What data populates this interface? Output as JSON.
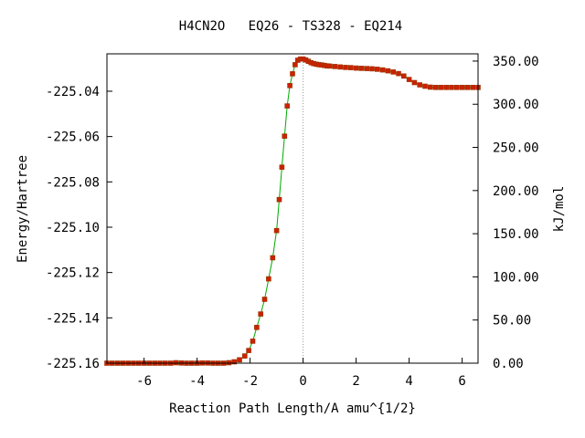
{
  "chart_data": {
    "type": "scatter",
    "title": "H4CN2O   EQ26 - TS328 - EQ214",
    "xlabel": "Reaction Path Length/A amu^{1/2}",
    "ylabel": "Energy/Hartree",
    "y2label": "kJ/mol",
    "xlim": [
      -7.4,
      6.6
    ],
    "ylim": [
      -225.16,
      -225.0235
    ],
    "y2lim": [
      0,
      358.4
    ],
    "x_ticks": [
      -6,
      -4,
      -2,
      0,
      2,
      4,
      6
    ],
    "x_tick_labels": [
      "-6",
      "-4",
      "-2",
      "0",
      "2",
      "4",
      "6"
    ],
    "y_ticks": [
      -225.16,
      -225.14,
      -225.12,
      -225.1,
      -225.08,
      -225.06,
      -225.04
    ],
    "y_tick_labels": [
      "-225.16",
      "-225.14",
      "-225.12",
      "-225.10",
      "-225.08",
      "-225.06",
      "-225.04"
    ],
    "y2_ticks": [
      0,
      50,
      100,
      150,
      200,
      250,
      300,
      350
    ],
    "y2_tick_labels": [
      "0.00",
      "50.00",
      "100.00",
      "150.00",
      "200.00",
      "250.00",
      "300.00",
      "350.00"
    ],
    "ts_marker_x": 0,
    "colors": {
      "points": "#cc2200",
      "point_edge": "#993300",
      "line": "#00aa00",
      "marker_line": "#999999",
      "axis": "#000000"
    },
    "series": [
      {
        "x": [
          -7.4,
          -7.2,
          -7.0,
          -6.8,
          -6.6,
          -6.4,
          -6.2,
          -6.0,
          -5.8,
          -5.6,
          -5.4,
          -5.2,
          -5.0,
          -4.8,
          -4.6,
          -4.4,
          -4.2,
          -4.0,
          -3.8,
          -3.6,
          -3.4,
          -3.2,
          -3.0,
          -2.8,
          -2.6,
          -2.4,
          -2.2,
          -2.05,
          -1.9,
          -1.75,
          -1.6,
          -1.45,
          -1.3,
          -1.15,
          -1.0,
          -0.9,
          -0.8,
          -0.7,
          -0.6,
          -0.5,
          -0.4,
          -0.3,
          -0.2,
          -0.1,
          0.0,
          0.1,
          0.2,
          0.3,
          0.4,
          0.5,
          0.6,
          0.7,
          0.8,
          0.9,
          1.0,
          1.2,
          1.4,
          1.6,
          1.8,
          2.0,
          2.2,
          2.4,
          2.6,
          2.8,
          3.0,
          3.2,
          3.4,
          3.6,
          3.8,
          4.0,
          4.2,
          4.4,
          4.6,
          4.8,
          5.0,
          5.2,
          5.4,
          5.6,
          5.8,
          6.0,
          6.2,
          6.4,
          6.6
        ],
        "y": [
          -225.16,
          -225.16,
          -225.16,
          -225.16,
          -225.16,
          -225.16,
          -225.16,
          -225.16,
          -225.16,
          -225.16,
          -225.16,
          -225.16,
          -225.16,
          -225.1598,
          -225.1599,
          -225.16,
          -225.16,
          -225.16,
          -225.1599,
          -225.1599,
          -225.16,
          -225.16,
          -225.16,
          -225.1598,
          -225.1594,
          -225.1585,
          -225.1568,
          -225.1544,
          -225.1503,
          -225.1442,
          -225.1383,
          -225.1318,
          -225.1228,
          -225.1135,
          -225.1015,
          -225.0878,
          -225.0735,
          -225.0598,
          -225.0465,
          -225.0375,
          -225.0323,
          -225.0283,
          -225.0263,
          -225.0258,
          -225.0258,
          -225.0262,
          -225.0268,
          -225.0274,
          -225.0278,
          -225.0281,
          -225.0283,
          -225.0284,
          -225.0286,
          -225.0288,
          -225.0289,
          -225.0291,
          -225.0293,
          -225.0295,
          -225.0296,
          -225.0298,
          -225.0299,
          -225.03,
          -225.0301,
          -225.0303,
          -225.0306,
          -225.031,
          -225.0315,
          -225.0322,
          -225.0333,
          -225.0348,
          -225.0362,
          -225.0372,
          -225.0378,
          -225.0382,
          -225.0383,
          -225.0383,
          -225.0383,
          -225.0383,
          -225.0383,
          -225.0383,
          -225.0383,
          -225.0383,
          -225.0383
        ]
      }
    ]
  }
}
